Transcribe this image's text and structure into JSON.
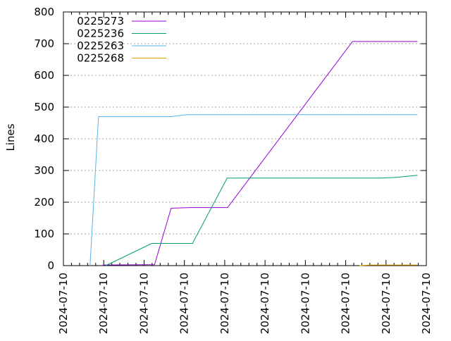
{
  "chart_data": {
    "type": "line",
    "title": "",
    "xlabel": "",
    "ylabel": "Lines",
    "xlim": [
      0,
      9
    ],
    "ylim": [
      0,
      800
    ],
    "x_tick_labels": [
      "2024-07-10",
      "2024-07-10",
      "2024-07-10",
      "2024-07-10",
      "2024-07-10",
      "2024-07-10",
      "2024-07-10",
      "2024-07-10",
      "2024-07-10",
      "2024-07-10"
    ],
    "y_ticks": [
      0,
      100,
      200,
      300,
      400,
      500,
      600,
      700,
      800
    ],
    "grid": "horizontal dashed",
    "legend_placement": "top-left",
    "series": [
      {
        "name": "0225273",
        "color": "#9400d3",
        "points": [
          [
            0.98,
            2
          ],
          [
            2.26,
            3
          ],
          [
            2.67,
            181
          ],
          [
            3.13,
            183
          ],
          [
            4.07,
            183
          ],
          [
            7.17,
            707
          ],
          [
            8.78,
            707
          ]
        ]
      },
      {
        "name": "0225236",
        "color": "#009e73",
        "points": [
          [
            1.05,
            0
          ],
          [
            2.19,
            70
          ],
          [
            3.2,
            70
          ],
          [
            4.06,
            276
          ],
          [
            7.87,
            276
          ],
          [
            8.22,
            278
          ],
          [
            8.48,
            281
          ],
          [
            8.78,
            285
          ]
        ]
      },
      {
        "name": "0225263",
        "color": "#56b4e9",
        "points": [
          [
            0.66,
            0
          ],
          [
            0.87,
            470
          ],
          [
            2.67,
            470
          ],
          [
            3.06,
            476
          ],
          [
            8.78,
            476
          ]
        ]
      },
      {
        "name": "0225268",
        "color": "#e69f00",
        "points": [
          [
            7.34,
            0
          ],
          [
            7.6,
            2
          ],
          [
            8.78,
            2
          ]
        ]
      }
    ]
  }
}
